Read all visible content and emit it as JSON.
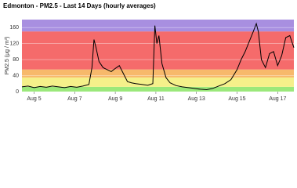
{
  "chart_data": {
    "type": "line",
    "title": "Edmonton - PM2.5 - Last 14 Days (hourly averages)",
    "y_label": "PM2.5 (μg / m³)",
    "x": [
      4.4,
      4.7,
      5.0,
      5.3,
      5.6,
      5.9,
      6.2,
      6.5,
      6.8,
      7.1,
      7.4,
      7.7,
      7.85,
      7.95,
      8.05,
      8.2,
      8.4,
      8.6,
      8.8,
      9.0,
      9.2,
      9.4,
      9.6,
      9.8,
      10.0,
      10.3,
      10.6,
      10.85,
      10.95,
      11.05,
      11.15,
      11.3,
      11.5,
      11.7,
      12.0,
      12.3,
      12.6,
      12.9,
      13.2,
      13.5,
      13.8,
      14.1,
      14.4,
      14.7,
      15.0,
      15.2,
      15.4,
      15.6,
      15.8,
      15.95,
      16.05,
      16.2,
      16.4,
      16.6,
      16.8,
      17.0,
      17.2,
      17.4,
      17.6,
      17.8
    ],
    "series": [
      {
        "name": "PM2.5",
        "color": "#000000",
        "values": [
          12,
          14,
          10,
          13,
          11,
          14,
          12,
          10,
          13,
          11,
          14,
          18,
          60,
          130,
          110,
          75,
          60,
          55,
          50,
          58,
          65,
          45,
          25,
          22,
          20,
          18,
          16,
          20,
          165,
          120,
          140,
          70,
          35,
          22,
          15,
          12,
          10,
          8,
          6,
          5,
          8,
          14,
          20,
          30,
          55,
          80,
          100,
          125,
          150,
          170,
          150,
          80,
          60,
          95,
          100,
          65,
          90,
          135,
          140,
          110
        ]
      }
    ],
    "xlim": [
      4.4,
      17.8
    ],
    "xticks": [
      {
        "value": 5,
        "label": "Aug 5"
      },
      {
        "value": 7,
        "label": "Aug 7"
      },
      {
        "value": 9,
        "label": "Aug 9"
      },
      {
        "value": 11,
        "label": "Aug 11"
      },
      {
        "value": 13,
        "label": "Aug 13"
      },
      {
        "value": 15,
        "label": "Aug 15"
      },
      {
        "value": 17,
        "label": "Aug 17"
      }
    ],
    "ylim": [
      0,
      180
    ],
    "yticks": [
      0,
      40,
      80,
      120,
      160
    ],
    "bands": [
      {
        "from": 0,
        "to": 12,
        "color": "#9be87a"
      },
      {
        "from": 12,
        "to": 35.4,
        "color": "#f5f08a"
      },
      {
        "from": 35.4,
        "to": 55.4,
        "color": "#f7b96b"
      },
      {
        "from": 55.4,
        "to": 150.4,
        "color": "#f56b6b"
      },
      {
        "from": 150.4,
        "to": 180,
        "color": "#a88fe0"
      }
    ]
  }
}
